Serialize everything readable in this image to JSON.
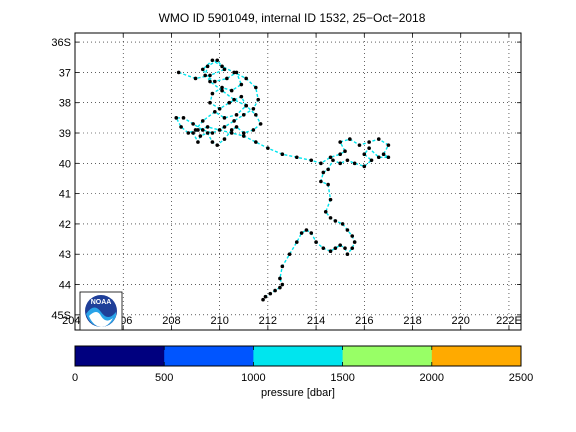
{
  "chart_data": {
    "type": "line",
    "title": "WMO ID 5901049, internal ID 1532, 25−Oct−2018",
    "xlim": [
      204,
      222.5
    ],
    "ylim": [
      -45.5,
      -35.7
    ],
    "x_ticks": [
      204,
      206,
      208,
      210,
      212,
      214,
      216,
      218,
      220,
      222
    ],
    "x_tick_labels": [
      "204E",
      "206",
      "208",
      "210",
      "212",
      "214",
      "216",
      "218",
      "220",
      "222E"
    ],
    "y_ticks": [
      -36,
      -37,
      -38,
      -39,
      -40,
      -41,
      -42,
      -43,
      -44,
      -45
    ],
    "y_tick_labels": [
      "36S",
      "37",
      "38",
      "39",
      "40",
      "41",
      "42",
      "43",
      "44",
      "45S"
    ],
    "grid": true,
    "track_color": "#00e5ee",
    "marker_color": "#000000",
    "series": [
      {
        "lon": [
          208.3,
          209.0,
          209.6,
          210.2,
          209.9,
          209.5,
          209.4,
          209.8,
          210.3,
          210.7,
          210.9,
          210.5,
          210.1,
          209.7,
          209.6,
          210.0,
          210.4,
          210.9,
          211.1,
          210.7,
          210.2,
          209.8,
          209.3,
          209.0,
          208.7,
          208.4,
          208.2,
          208.5,
          208.9,
          209.3,
          209.7,
          210.2,
          210.6,
          211.0,
          211.4,
          211.6,
          211.5,
          211.1,
          210.6,
          210.1,
          209.7,
          209.3,
          209.6,
          210.1,
          210.6,
          211.1,
          211.5,
          211.7,
          211.4,
          211.0,
          210.7,
          210.5,
          210.2,
          209.9,
          209.7,
          209.5,
          209.2,
          209.1,
          208.9,
          209.1,
          209.5,
          210.0,
          210.5,
          211.0,
          211.5,
          212.0,
          212.6,
          213.2,
          213.8,
          214.2,
          214.6,
          215.0,
          215.2,
          215.0,
          215.4,
          215.8,
          216.2,
          216.6,
          217.0,
          216.8,
          217.0,
          216.6,
          216.2,
          216.0,
          216.3,
          216.0,
          215.6,
          215.3,
          215.0,
          214.7,
          214.5,
          214.3,
          214.2,
          214.5,
          214.6,
          214.4,
          214.6,
          214.8,
          215.1,
          215.3,
          215.5,
          215.6,
          215.5,
          215.3,
          215.2,
          215.0,
          214.8,
          214.6,
          214.3,
          214.0,
          213.8,
          213.6,
          213.4,
          213.2,
          212.9,
          212.6,
          212.5,
          212.6,
          212.5,
          212.3,
          212.1,
          211.9,
          211.8
        ],
        "lat": [
          -37.0,
          -37.2,
          -37.1,
          -36.9,
          -36.6,
          -36.8,
          -37.1,
          -37.3,
          -37.2,
          -37.0,
          -37.4,
          -37.6,
          -37.5,
          -37.7,
          -38.0,
          -38.2,
          -38.0,
          -37.8,
          -38.1,
          -38.4,
          -38.5,
          -38.3,
          -38.6,
          -38.9,
          -39.0,
          -38.8,
          -38.5,
          -38.5,
          -38.7,
          -38.9,
          -39.0,
          -38.8,
          -38.6,
          -38.4,
          -38.2,
          -37.9,
          -37.5,
          -37.2,
          -37.0,
          -36.8,
          -36.6,
          -36.9,
          -37.3,
          -37.6,
          -37.9,
          -38.1,
          -38.4,
          -38.7,
          -38.9,
          -39.0,
          -38.8,
          -38.9,
          -39.2,
          -39.4,
          -39.3,
          -39.0,
          -39.1,
          -39.3,
          -39.0,
          -38.9,
          -38.8,
          -38.9,
          -39.0,
          -39.1,
          -39.3,
          -39.5,
          -39.7,
          -39.8,
          -39.9,
          -40.0,
          -39.8,
          -39.7,
          -39.6,
          -39.3,
          -39.2,
          -39.4,
          -39.3,
          -39.2,
          -39.4,
          -39.7,
          -39.8,
          -39.8,
          -39.5,
          -39.7,
          -39.9,
          -40.1,
          -40.0,
          -39.9,
          -40.0,
          -39.9,
          -40.2,
          -40.3,
          -40.6,
          -40.7,
          -41.2,
          -41.6,
          -41.8,
          -41.9,
          -42.0,
          -42.2,
          -42.4,
          -42.6,
          -42.8,
          -43.0,
          -42.8,
          -42.7,
          -42.8,
          -42.9,
          -42.8,
          -42.6,
          -42.3,
          -42.2,
          -42.3,
          -42.6,
          -43.0,
          -43.4,
          -43.8,
          -44.0,
          -44.1,
          -44.2,
          -44.3,
          -44.4,
          -44.5
        ]
      }
    ]
  },
  "colorbar": {
    "label": "pressure [dbar]",
    "min": 0,
    "max": 2500,
    "ticks": [
      0,
      500,
      1000,
      1500,
      2000,
      2500
    ],
    "tick_labels": [
      "0",
      "500",
      "1000",
      "1500",
      "2000",
      "2500"
    ],
    "colors": [
      "#00007f",
      "#0055ff",
      "#00e5ee",
      "#98ff66",
      "#ffaa00"
    ]
  },
  "logo": {
    "text": "NOAA"
  }
}
